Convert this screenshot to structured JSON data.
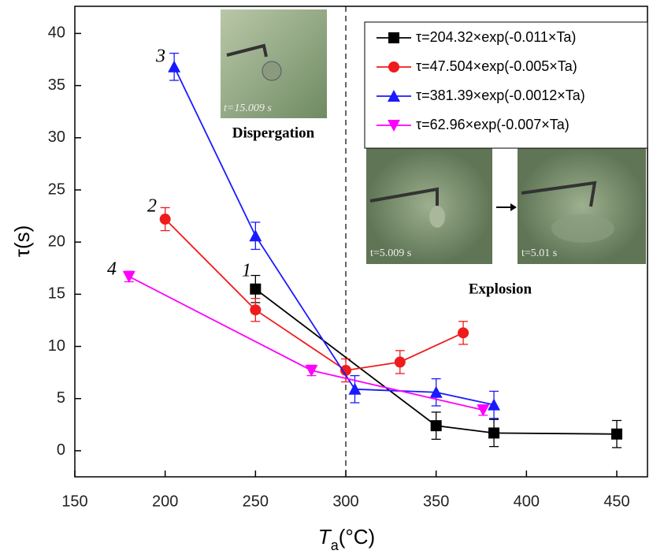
{
  "chart_data": {
    "type": "line",
    "x_label": {
      "symbol": "T",
      "subscript": "a",
      "unit": "(°C)"
    },
    "y_label": "τ(s)",
    "xlim": [
      150,
      467
    ],
    "ylim": [
      -2.5,
      42.6
    ],
    "xticks": [
      150,
      200,
      250,
      300,
      350,
      400,
      450
    ],
    "yticks": [
      0,
      5,
      10,
      15,
      20,
      25,
      30,
      35,
      40
    ],
    "vline": 300,
    "series": [
      {
        "name": "τ=204.32×exp(-0.011×Ta)",
        "label": "1",
        "color": "#000000",
        "marker": "square",
        "x": [
          250,
          350,
          382,
          450
        ],
        "values": [
          15.5,
          2.4,
          1.7,
          1.6
        ],
        "errors": [
          1.3,
          1.3,
          1.3,
          1.3
        ]
      },
      {
        "name": "τ=47.504×exp(-0.005×Ta)",
        "label": "2",
        "color": "#ee1c1c",
        "marker": "circle",
        "x": [
          200,
          250,
          300,
          330,
          365
        ],
        "values": [
          22.2,
          13.5,
          7.7,
          8.5,
          11.3
        ],
        "errors": [
          1.1,
          1.1,
          1.1,
          1.1,
          1.1
        ]
      },
      {
        "name": "τ=381.39×exp(-0.0012×Ta)",
        "label": "3",
        "color": "#1a1aff",
        "marker": "triangle-up",
        "x": [
          205,
          250,
          305,
          350,
          382
        ],
        "values": [
          36.8,
          20.6,
          5.9,
          5.6,
          4.4
        ],
        "errors": [
          1.3,
          1.3,
          1.3,
          1.3,
          1.3
        ]
      },
      {
        "name": "τ=62.96×exp(-0.007×Ta)",
        "label": "4",
        "color": "#ff00ff",
        "marker": "triangle-down",
        "x": [
          180,
          281,
          376
        ],
        "values": [
          16.7,
          7.7,
          3.9
        ],
        "errors": [
          0.5,
          0.5,
          0.5
        ]
      }
    ],
    "insets": [
      {
        "time": "t=15.009 s",
        "caption": "Dispergation"
      },
      {
        "time": "t=5.009 s",
        "caption": "Explosion"
      },
      {
        "time": "t=5.01 s"
      }
    ]
  }
}
